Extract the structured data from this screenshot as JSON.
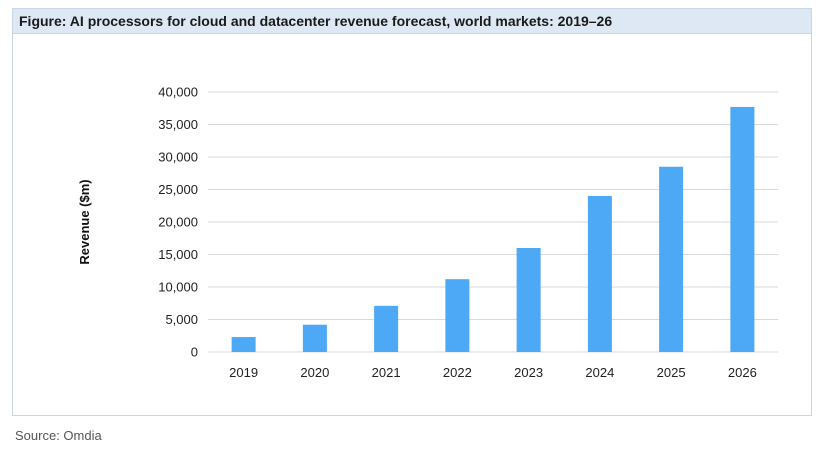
{
  "figure": {
    "title": "Figure: AI processors for cloud and datacenter revenue forecast, world markets: 2019–26",
    "source": "Source: Omdia"
  },
  "colors": {
    "bar": "#4da8f5",
    "gridline": "#d9d9d9",
    "title_bg": "#dde8f4",
    "border": "#c8d7e6"
  },
  "chart_data": {
    "type": "bar",
    "title": "Figure: AI processors for cloud and datacenter revenue forecast, world markets: 2019–26",
    "xlabel": "",
    "ylabel": "Revenue ($m)",
    "categories": [
      "2019",
      "2020",
      "2021",
      "2022",
      "2023",
      "2024",
      "2025",
      "2026"
    ],
    "values": [
      2300,
      4200,
      7100,
      11200,
      16000,
      24000,
      28500,
      37700
    ],
    "ylim": [
      0,
      40000
    ],
    "yticks": [
      0,
      5000,
      10000,
      15000,
      20000,
      25000,
      30000,
      35000,
      40000
    ],
    "ytick_labels": [
      "0",
      "5,000",
      "10,000",
      "15,000",
      "20,000",
      "25,000",
      "30,000",
      "35,000",
      "40,000"
    ],
    "grid": true,
    "legend": "none"
  }
}
